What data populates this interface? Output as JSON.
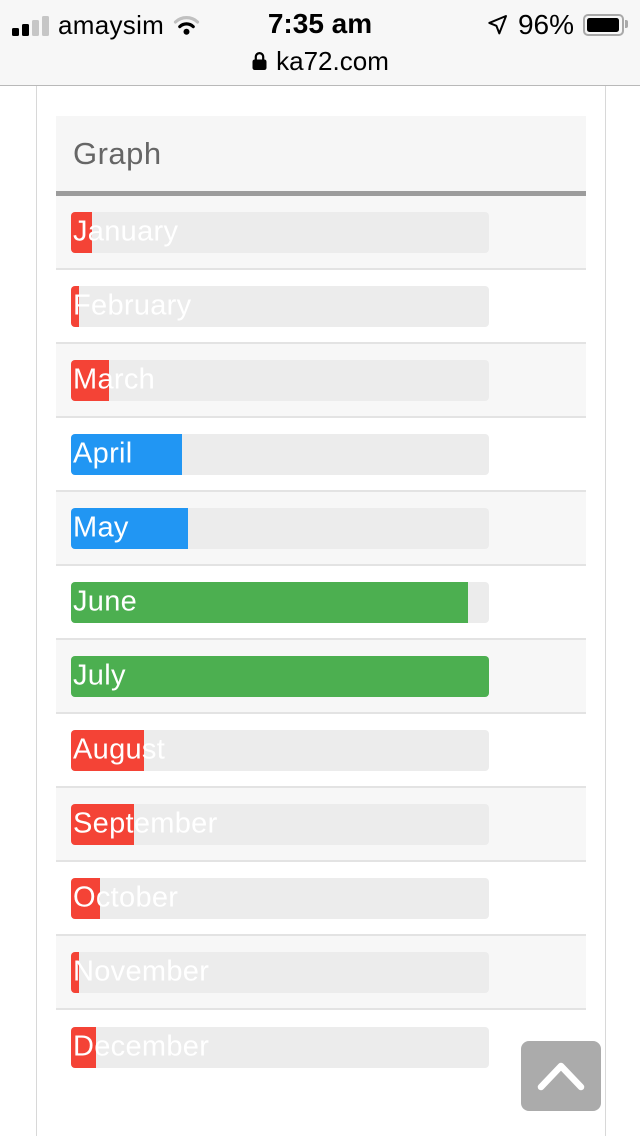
{
  "status_bar": {
    "carrier": "amaysim",
    "time": "7:35 am",
    "battery_percent": "96%",
    "signal_icon": "cellular-signal-2-of-4-bars",
    "wifi_icon": "wifi-2-of-3",
    "location_icon": "location-arrow",
    "battery_icon": "battery-nearly-full"
  },
  "url_bar": {
    "lock_icon": "lock",
    "url": "ka72.com"
  },
  "page": {
    "title": "Graph"
  },
  "chart_data": {
    "type": "bar",
    "orientation": "horizontal",
    "title": "Graph",
    "categories": [
      "January",
      "February",
      "March",
      "April",
      "May",
      "June",
      "July",
      "August",
      "September",
      "October",
      "November",
      "December"
    ],
    "values_percent": [
      5,
      2,
      9,
      26.5,
      28,
      95,
      100,
      17.5,
      15,
      7,
      2,
      6
    ],
    "bar_colors": [
      "#f44336",
      "#f44336",
      "#f44336",
      "#2196f3",
      "#2196f3",
      "#4caf50",
      "#4caf50",
      "#f44336",
      "#f44336",
      "#f44336",
      "#f44336",
      "#f44336"
    ],
    "xlim": [
      0,
      100
    ],
    "legend": "none",
    "grid": false,
    "track_color": "#ececec",
    "label_position": "inside-left",
    "label_color": "#ffffff"
  },
  "scroll_top_button": {
    "icon": "chevron-up"
  },
  "colors": {
    "red": "#f44336",
    "blue": "#2196f3",
    "green": "#4caf50",
    "track": "#ececec",
    "row_alt": "#f7f7f7",
    "divider": "#e3e3e3",
    "header_underline": "#9c9c9c",
    "chrome_bg": "#f7f7f7",
    "button_bg": "#ababab"
  }
}
